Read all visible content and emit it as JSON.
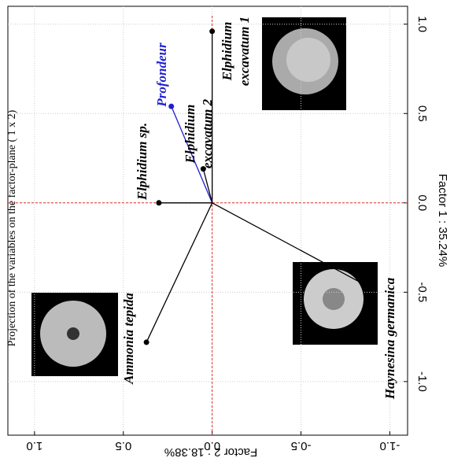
{
  "chart_data": {
    "type": "scatter",
    "title": "Projection of the variables on the factor-plane ( 1 x 2)",
    "xlabel": "Factor 2 : 18.38%",
    "ylabel": "Factor 1 : 35.24%",
    "labels": [
      [
        "Profondeur"
      ],
      [
        "Elphidium",
        "excavatum 1"
      ],
      [
        "Elphidium",
        "excavatum 2"
      ],
      [
        "Elphidium sp."
      ],
      [
        "Haynesina germanica"
      ],
      [
        "Ammonia tepida"
      ]
    ],
    "x": [
      0.23,
      0.0,
      0.05,
      0.3,
      -0.9,
      0.37
    ],
    "values": [
      0.54,
      0.96,
      0.19,
      0.0,
      -0.48,
      -0.78
    ],
    "colors": [
      "#1f1fd0",
      "#000000",
      "#000000",
      "#000000",
      "#000000",
      "#000000"
    ],
    "xlim": [
      1.15,
      -1.1
    ],
    "ylim": [
      -1.3,
      1.1
    ],
    "xticks": [
      {
        "value": 1.0,
        "label": "1.0"
      },
      {
        "value": 0.5,
        "label": "0.5"
      },
      {
        "value": 0.0,
        "label": "0.0"
      },
      {
        "value": -0.5,
        "label": "-0.5"
      },
      {
        "value": -1.0,
        "label": "-1.0"
      }
    ],
    "yticks": [
      {
        "value": 1.0,
        "label": "1.0"
      },
      {
        "value": 0.5,
        "label": "0.5"
      },
      {
        "value": 0.0,
        "label": "0.0"
      },
      {
        "value": -0.5,
        "label": "-0.5"
      },
      {
        "value": -1.0,
        "label": "-1.0"
      }
    ],
    "grid": true
  }
}
